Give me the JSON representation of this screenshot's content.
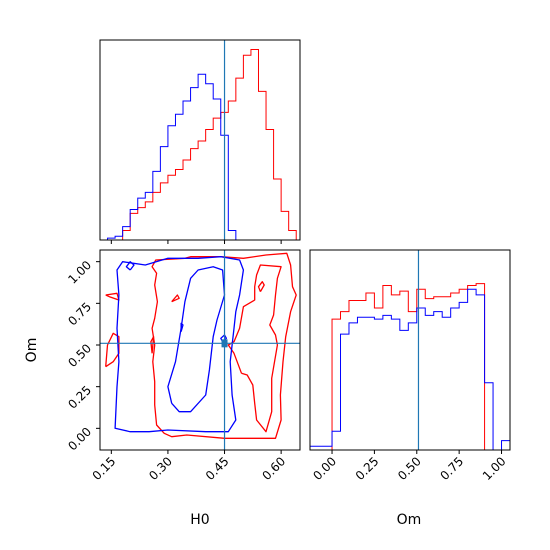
{
  "chart_data": {
    "type": "corner",
    "parameters": [
      "H0",
      "Om"
    ],
    "truth": {
      "H0": 0.45,
      "Om": 0.51
    },
    "colors": {
      "red": "#ff0000",
      "blue": "#0000ff",
      "truth": "#1f77b4"
    },
    "h0_hist": {
      "xlim": [
        0.12,
        0.65
      ],
      "ylim": [
        0,
        1.05
      ],
      "bins": [
        0.12,
        0.14,
        0.16,
        0.18,
        0.2,
        0.22,
        0.24,
        0.26,
        0.28,
        0.3,
        0.32,
        0.34,
        0.36,
        0.38,
        0.4,
        0.42,
        0.44,
        0.46,
        0.48,
        0.5,
        0.52,
        0.54,
        0.56,
        0.58,
        0.6,
        0.62,
        0.64
      ],
      "series": [
        {
          "color": "red",
          "values": [
            0.0,
            0.0,
            0.0,
            0.05,
            0.14,
            0.17,
            0.2,
            0.25,
            0.3,
            0.34,
            0.37,
            0.42,
            0.48,
            0.52,
            0.58,
            0.64,
            0.67,
            0.73,
            0.85,
            0.97,
            1.0,
            0.78,
            0.58,
            0.32,
            0.15,
            0.05
          ]
        },
        {
          "color": "blue",
          "values": [
            0.0,
            0.01,
            0.02,
            0.07,
            0.16,
            0.22,
            0.25,
            0.36,
            0.49,
            0.6,
            0.66,
            0.73,
            0.8,
            0.87,
            0.82,
            0.74,
            0.55,
            0.05,
            0.0,
            0.0,
            0.0,
            0.0,
            0.0,
            0.0,
            0.0,
            0.0
          ]
        }
      ]
    },
    "om_hist": {
      "xlim": [
        -0.13,
        1.05
      ],
      "ylim": [
        0,
        1.07
      ],
      "bins": [
        -0.13,
        0.0,
        0.05,
        0.1,
        0.15,
        0.2,
        0.25,
        0.3,
        0.35,
        0.4,
        0.45,
        0.5,
        0.55,
        0.6,
        0.65,
        0.7,
        0.75,
        0.8,
        0.85,
        0.9,
        0.95,
        1.0,
        1.05
      ],
      "series": [
        {
          "color": "red",
          "values": [
            0.0,
            0.7,
            0.74,
            0.8,
            0.8,
            0.84,
            0.76,
            0.88,
            0.83,
            0.85,
            0.74,
            0.86,
            0.81,
            0.82,
            0.82,
            0.84,
            0.86,
            0.88,
            0.89,
            0.0,
            0.0,
            0.0
          ]
        },
        {
          "color": "blue",
          "values": [
            0.02,
            0.1,
            0.62,
            0.68,
            0.71,
            0.71,
            0.7,
            0.72,
            0.7,
            0.64,
            0.68,
            0.76,
            0.72,
            0.74,
            0.71,
            0.76,
            0.79,
            0.86,
            0.83,
            0.36,
            0.0,
            0.05
          ]
        }
      ]
    },
    "contour": {
      "xlim": [
        0.12,
        0.65
      ],
      "ylim": [
        -0.13,
        1.07
      ],
      "series": [
        {
          "color": "red",
          "lines": [
            [
              [
                0.345,
                1.02
              ],
              [
                0.36,
                1.03
              ],
              [
                0.44,
                1.03
              ],
              [
                0.5,
                1.02
              ],
              [
                0.56,
                1.04
              ],
              [
                0.615,
                1.05
              ],
              [
                0.625,
                0.98
              ],
              [
                0.63,
                0.85
              ],
              [
                0.64,
                0.8
              ],
              [
                0.625,
                0.7
              ],
              [
                0.612,
                0.55
              ],
              [
                0.605,
                0.4
              ],
              [
                0.598,
                0.2
              ],
              [
                0.6,
                0.05
              ],
              [
                0.585,
                -0.06
              ],
              [
                0.45,
                -0.06
              ],
              [
                0.35,
                -0.04
              ],
              [
                0.31,
                -0.05
              ],
              [
                0.29,
                -0.03
              ],
              [
                0.27,
                0.02
              ],
              [
                0.265,
                0.14
              ],
              [
                0.265,
                0.28
              ],
              [
                0.26,
                0.4
              ],
              [
                0.265,
                0.5
              ],
              [
                0.258,
                0.6
              ],
              [
                0.265,
                0.66
              ],
              [
                0.272,
                0.76
              ],
              [
                0.265,
                0.86
              ],
              [
                0.27,
                0.93
              ],
              [
                0.258,
                0.97
              ],
              [
                0.268,
                1.01
              ],
              [
                0.345,
                1.02
              ]
            ],
            [
              [
                0.495,
                0.33
              ],
              [
                0.51,
                0.32
              ],
              [
                0.525,
                0.26
              ],
              [
                0.53,
                0.15
              ],
              [
                0.535,
                0.05
              ],
              [
                0.56,
                -0.02
              ],
              [
                0.575,
                0.1
              ],
              [
                0.575,
                0.3
              ],
              [
                0.59,
                0.5
              ],
              [
                0.585,
                0.56
              ],
              [
                0.57,
                0.62
              ],
              [
                0.58,
                0.68
              ],
              [
                0.585,
                0.8
              ],
              [
                0.59,
                0.9
              ],
              [
                0.6,
                0.97
              ],
              [
                0.545,
                0.98
              ],
              [
                0.535,
                0.92
              ],
              [
                0.53,
                0.85
              ],
              [
                0.53,
                0.77
              ],
              [
                0.5,
                0.73
              ],
              [
                0.49,
                0.6
              ],
              [
                0.475,
                0.52
              ],
              [
                0.46,
                0.5
              ],
              [
                0.475,
                0.45
              ],
              [
                0.495,
                0.33
              ]
            ],
            [
              [
                0.135,
                0.37
              ],
              [
                0.155,
                0.4
              ],
              [
                0.17,
                0.45
              ],
              [
                0.17,
                0.55
              ],
              [
                0.155,
                0.57
              ],
              [
                0.14,
                0.5
              ],
              [
                0.135,
                0.37
              ]
            ],
            [
              [
                0.135,
                0.8
              ],
              [
                0.165,
                0.81
              ],
              [
                0.17,
                0.77
              ],
              [
                0.145,
                0.79
              ],
              [
                0.135,
                0.8
              ]
            ],
            [
              [
                0.545,
                0.82
              ],
              [
                0.555,
                0.86
              ],
              [
                0.55,
                0.88
              ],
              [
                0.54,
                0.85
              ],
              [
                0.545,
                0.82
              ]
            ],
            [
              [
                0.31,
                0.76
              ],
              [
                0.33,
                0.78
              ],
              [
                0.325,
                0.8
              ],
              [
                0.31,
                0.76
              ]
            ],
            [
              [
                0.258,
                0.45
              ],
              [
                0.262,
                0.55
              ],
              [
                0.255,
                0.52
              ],
              [
                0.258,
                0.45
              ]
            ]
          ]
        },
        {
          "color": "blue",
          "lines": [
            [
              [
                0.165,
                0.25
              ],
              [
                0.17,
                0.4
              ],
              [
                0.165,
                0.6
              ],
              [
                0.17,
                0.8
              ],
              [
                0.165,
                0.95
              ],
              [
                0.18,
                1.0
              ],
              [
                0.24,
                0.98
              ],
              [
                0.3,
                1.02
              ],
              [
                0.38,
                1.02
              ],
              [
                0.44,
                1.03
              ],
              [
                0.49,
                1.01
              ],
              [
                0.5,
                0.95
              ],
              [
                0.49,
                0.8
              ],
              [
                0.48,
                0.7
              ],
              [
                0.475,
                0.6
              ],
              [
                0.47,
                0.5
              ],
              [
                0.465,
                0.4
              ],
              [
                0.47,
                0.2
              ],
              [
                0.48,
                0.05
              ],
              [
                0.46,
                -0.02
              ],
              [
                0.4,
                -0.02
              ],
              [
                0.3,
                -0.01
              ],
              [
                0.25,
                -0.02
              ],
              [
                0.2,
                -0.02
              ],
              [
                0.16,
                0.0
              ],
              [
                0.165,
                0.25
              ]
            ],
            [
              [
                0.31,
                0.15
              ],
              [
                0.3,
                0.25
              ],
              [
                0.32,
                0.4
              ],
              [
                0.335,
                0.6
              ],
              [
                0.345,
                0.76
              ],
              [
                0.36,
                0.9
              ],
              [
                0.38,
                0.95
              ],
              [
                0.42,
                0.97
              ],
              [
                0.445,
                0.95
              ],
              [
                0.45,
                0.8
              ],
              [
                0.43,
                0.65
              ],
              [
                0.42,
                0.55
              ],
              [
                0.41,
                0.35
              ],
              [
                0.4,
                0.2
              ],
              [
                0.36,
                0.1
              ],
              [
                0.33,
                0.1
              ],
              [
                0.31,
                0.15
              ]
            ],
            [
              [
                0.2,
                0.95
              ],
              [
                0.21,
                0.98
              ],
              [
                0.2,
                1.0
              ],
              [
                0.19,
                0.97
              ],
              [
                0.2,
                0.95
              ]
            ],
            [
              [
                0.335,
                0.58
              ],
              [
                0.34,
                0.62
              ],
              [
                0.335,
                0.63
              ],
              [
                0.335,
                0.58
              ]
            ],
            [
              [
                0.445,
                0.52
              ],
              [
                0.455,
                0.54
              ],
              [
                0.45,
                0.56
              ],
              [
                0.44,
                0.54
              ],
              [
                0.445,
                0.52
              ]
            ]
          ]
        }
      ]
    },
    "x_ticks_h0": [
      "0.15",
      "0.30",
      "0.45",
      "0.60"
    ],
    "x_tick_values_h0": [
      0.15,
      0.3,
      0.45,
      0.6
    ],
    "y_ticks_om": [
      "0.00",
      "0.25",
      "0.50",
      "0.75",
      "1.00"
    ],
    "y_tick_values_om": [
      0.0,
      0.25,
      0.5,
      0.75,
      1.0
    ],
    "x_ticks_om": [
      "0.00",
      "0.25",
      "0.50",
      "0.75",
      "1.00"
    ],
    "x_tick_values_om": [
      0.0,
      0.25,
      0.5,
      0.75,
      1.0
    ],
    "xlabel_h0": "H0",
    "ylabel_om": "Om",
    "xlabel_om": "Om"
  }
}
